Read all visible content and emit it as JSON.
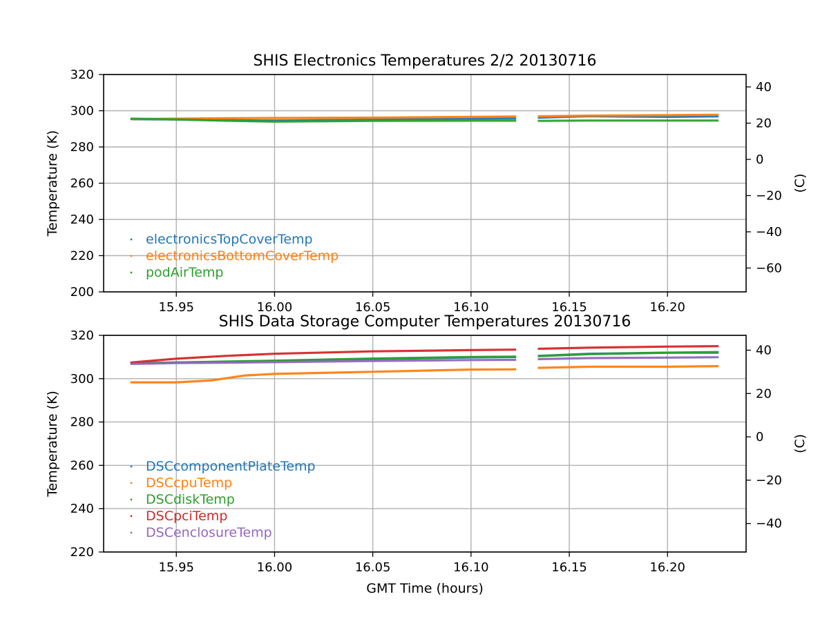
{
  "figure": {
    "xlabel": "GMT Time (hours)"
  },
  "chart_data": [
    {
      "type": "scatter",
      "title": "SHIS Electronics Temperatures 2/2 20130716",
      "xlabel": "",
      "ylabel": "Temperature (K)",
      "y2label": "(C)",
      "xlim": [
        15.913,
        16.24
      ],
      "ylim": [
        200,
        320
      ],
      "xticks": [
        15.95,
        16.0,
        16.05,
        16.1,
        16.15,
        16.2
      ],
      "yticks": [
        200,
        220,
        240,
        260,
        280,
        300,
        320
      ],
      "y2ticks": [
        -60,
        -40,
        -20,
        0,
        20,
        40
      ],
      "grid": true,
      "legend": "lower-left",
      "gap": [
        16.123,
        16.134
      ],
      "series": [
        {
          "name": "electronicsTopCoverTemp",
          "color": "#1f77b4",
          "x": [
            15.927,
            15.95,
            15.975,
            16.0,
            16.05,
            16.1,
            16.123,
            16.134,
            16.16,
            16.2,
            16.226
          ],
          "y": [
            295.3,
            295.2,
            294.8,
            294.6,
            295.1,
            295.6,
            295.8,
            296.2,
            297.0,
            296.6,
            296.9
          ]
        },
        {
          "name": "electronicsBottomCoverTemp",
          "color": "#ff7f0e",
          "x": [
            15.927,
            15.95,
            15.975,
            16.0,
            16.05,
            16.1,
            16.123,
            16.134,
            16.16,
            16.2,
            16.226
          ],
          "y": [
            295.4,
            295.6,
            295.9,
            296.0,
            296.2,
            296.6,
            296.8,
            296.9,
            297.3,
            297.6,
            297.8
          ]
        },
        {
          "name": "podAirTemp",
          "color": "#2ca02c",
          "x": [
            15.927,
            15.95,
            15.975,
            16.0,
            16.05,
            16.1,
            16.123,
            16.134,
            16.16,
            16.2,
            16.226
          ],
          "y": [
            295.6,
            295.2,
            294.5,
            294.0,
            294.4,
            294.5,
            294.5,
            294.4,
            294.6,
            294.6,
            294.6
          ]
        }
      ]
    },
    {
      "type": "scatter",
      "title": "SHIS Data Storage Computer Temperatures 20130716",
      "xlabel": "GMT Time (hours)",
      "ylabel": "Temperature (K)",
      "y2label": "(C)",
      "xlim": [
        15.913,
        16.24
      ],
      "ylim": [
        220,
        320
      ],
      "xticks": [
        15.95,
        16.0,
        16.05,
        16.1,
        16.15,
        16.2
      ],
      "yticks": [
        220,
        240,
        260,
        280,
        300,
        320
      ],
      "y2ticks": [
        -40,
        -20,
        0,
        20,
        40
      ],
      "grid": true,
      "legend": "lower-left",
      "gap": [
        16.123,
        16.134
      ],
      "series": [
        {
          "name": "DSCcomponentPlateTemp",
          "color": "#1f77b4",
          "x": [
            15.927,
            15.95,
            15.975,
            16.0,
            16.05,
            16.1,
            16.123,
            16.134,
            16.16,
            16.2,
            16.226
          ],
          "y": [
            307.0,
            307.5,
            307.8,
            308.2,
            309.0,
            309.8,
            310.0,
            310.5,
            311.5,
            312.0,
            312.0
          ]
        },
        {
          "name": "DSCcpuTemp",
          "color": "#ff7f0e",
          "x": [
            15.927,
            15.95,
            15.968,
            15.985,
            16.0,
            16.05,
            16.1,
            16.123,
            16.134,
            16.16,
            16.2,
            16.226
          ],
          "y": [
            298.3,
            298.3,
            299.2,
            301.5,
            302.2,
            303.2,
            304.2,
            304.3,
            305.0,
            305.5,
            305.5,
            305.8
          ]
        },
        {
          "name": "DSCdiskTemp",
          "color": "#2ca02c",
          "x": [
            15.927,
            15.95,
            15.975,
            16.0,
            16.05,
            16.1,
            16.123,
            16.134,
            16.16,
            16.2,
            16.226
          ],
          "y": [
            307.2,
            307.5,
            307.9,
            308.3,
            309.3,
            310.0,
            310.2,
            310.4,
            311.3,
            312.0,
            312.3
          ]
        },
        {
          "name": "DSCpciTemp",
          "color": "#d62728",
          "x": [
            15.927,
            15.95,
            15.975,
            16.0,
            16.05,
            16.1,
            16.123,
            16.134,
            16.16,
            16.2,
            16.226
          ],
          "y": [
            307.5,
            309.2,
            310.5,
            311.5,
            312.6,
            313.2,
            313.4,
            313.8,
            314.3,
            314.8,
            315.0
          ]
        },
        {
          "name": "DSCenclosureTemp",
          "color": "#9467bd",
          "x": [
            15.927,
            15.95,
            15.975,
            16.0,
            16.05,
            16.1,
            16.123,
            16.134,
            16.16,
            16.2,
            16.226
          ],
          "y": [
            306.8,
            307.2,
            307.4,
            307.6,
            308.2,
            308.6,
            308.7,
            309.0,
            309.5,
            309.7,
            309.9
          ]
        }
      ]
    }
  ]
}
